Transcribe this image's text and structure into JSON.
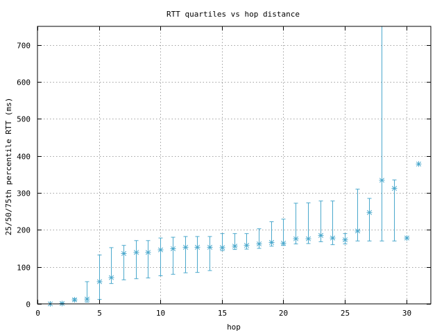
{
  "chart_data": {
    "type": "scatter",
    "title": "RTT quartiles vs hop distance",
    "xlabel": "hop",
    "ylabel": "25/50/75th percentile RTT (ms)",
    "xlim": [
      0,
      32
    ],
    "ylim": [
      0,
      750
    ],
    "xticks": [
      0,
      5,
      10,
      15,
      20,
      25,
      30
    ],
    "yticks": [
      0,
      100,
      200,
      300,
      400,
      500,
      600,
      700
    ],
    "grid": true,
    "color": "#4aa8cc",
    "marker": "asterisk",
    "points": [
      {
        "hop": 1,
        "p25": 0,
        "p50": 0,
        "p75": 0
      },
      {
        "hop": 2,
        "p25": 0,
        "p50": 1,
        "p75": 2
      },
      {
        "hop": 3,
        "p25": 8,
        "p50": 11,
        "p75": 14
      },
      {
        "hop": 4,
        "p25": 5,
        "p50": 13,
        "p75": 60
      },
      {
        "hop": 5,
        "p25": 12,
        "p50": 60,
        "p75": 132
      },
      {
        "hop": 6,
        "p25": 55,
        "p50": 71,
        "p75": 152
      },
      {
        "hop": 7,
        "p25": 65,
        "p50": 136,
        "p75": 158
      },
      {
        "hop": 8,
        "p25": 68,
        "p50": 139,
        "p75": 171
      },
      {
        "hop": 9,
        "p25": 70,
        "p50": 139,
        "p75": 171
      },
      {
        "hop": 10,
        "p25": 76,
        "p50": 146,
        "p75": 178
      },
      {
        "hop": 11,
        "p25": 80,
        "p50": 149,
        "p75": 180
      },
      {
        "hop": 12,
        "p25": 84,
        "p50": 153,
        "p75": 182
      },
      {
        "hop": 13,
        "p25": 85,
        "p50": 153,
        "p75": 182
      },
      {
        "hop": 14,
        "p25": 90,
        "p50": 153,
        "p75": 182
      },
      {
        "hop": 15,
        "p25": 144,
        "p50": 152,
        "p75": 190
      },
      {
        "hop": 16,
        "p25": 147,
        "p50": 156,
        "p75": 190
      },
      {
        "hop": 17,
        "p25": 148,
        "p50": 158,
        "p75": 190
      },
      {
        "hop": 18,
        "p25": 150,
        "p50": 162,
        "p75": 203
      },
      {
        "hop": 19,
        "p25": 156,
        "p50": 166,
        "p75": 222
      },
      {
        "hop": 20,
        "p25": 158,
        "p50": 164,
        "p75": 229
      },
      {
        "hop": 21,
        "p25": 162,
        "p50": 176,
        "p75": 272
      },
      {
        "hop": 22,
        "p25": 163,
        "p50": 176,
        "p75": 273
      },
      {
        "hop": 23,
        "p25": 168,
        "p50": 185,
        "p75": 278
      },
      {
        "hop": 24,
        "p25": 160,
        "p50": 178,
        "p75": 278
      },
      {
        "hop": 25,
        "p25": 162,
        "p50": 173,
        "p75": 190
      },
      {
        "hop": 26,
        "p25": 170,
        "p50": 197,
        "p75": 310
      },
      {
        "hop": 27,
        "p25": 170,
        "p50": 247,
        "p75": 285
      },
      {
        "hop": 28,
        "p25": 170,
        "p50": 334,
        "p75": 755
      },
      {
        "hop": 29,
        "p25": 170,
        "p50": 312,
        "p75": 335
      },
      {
        "hop": 30,
        "p25": 178,
        "p50": 178,
        "p75": 178
      },
      {
        "hop": 31,
        "p25": 378,
        "p50": 378,
        "p75": 378
      }
    ]
  }
}
